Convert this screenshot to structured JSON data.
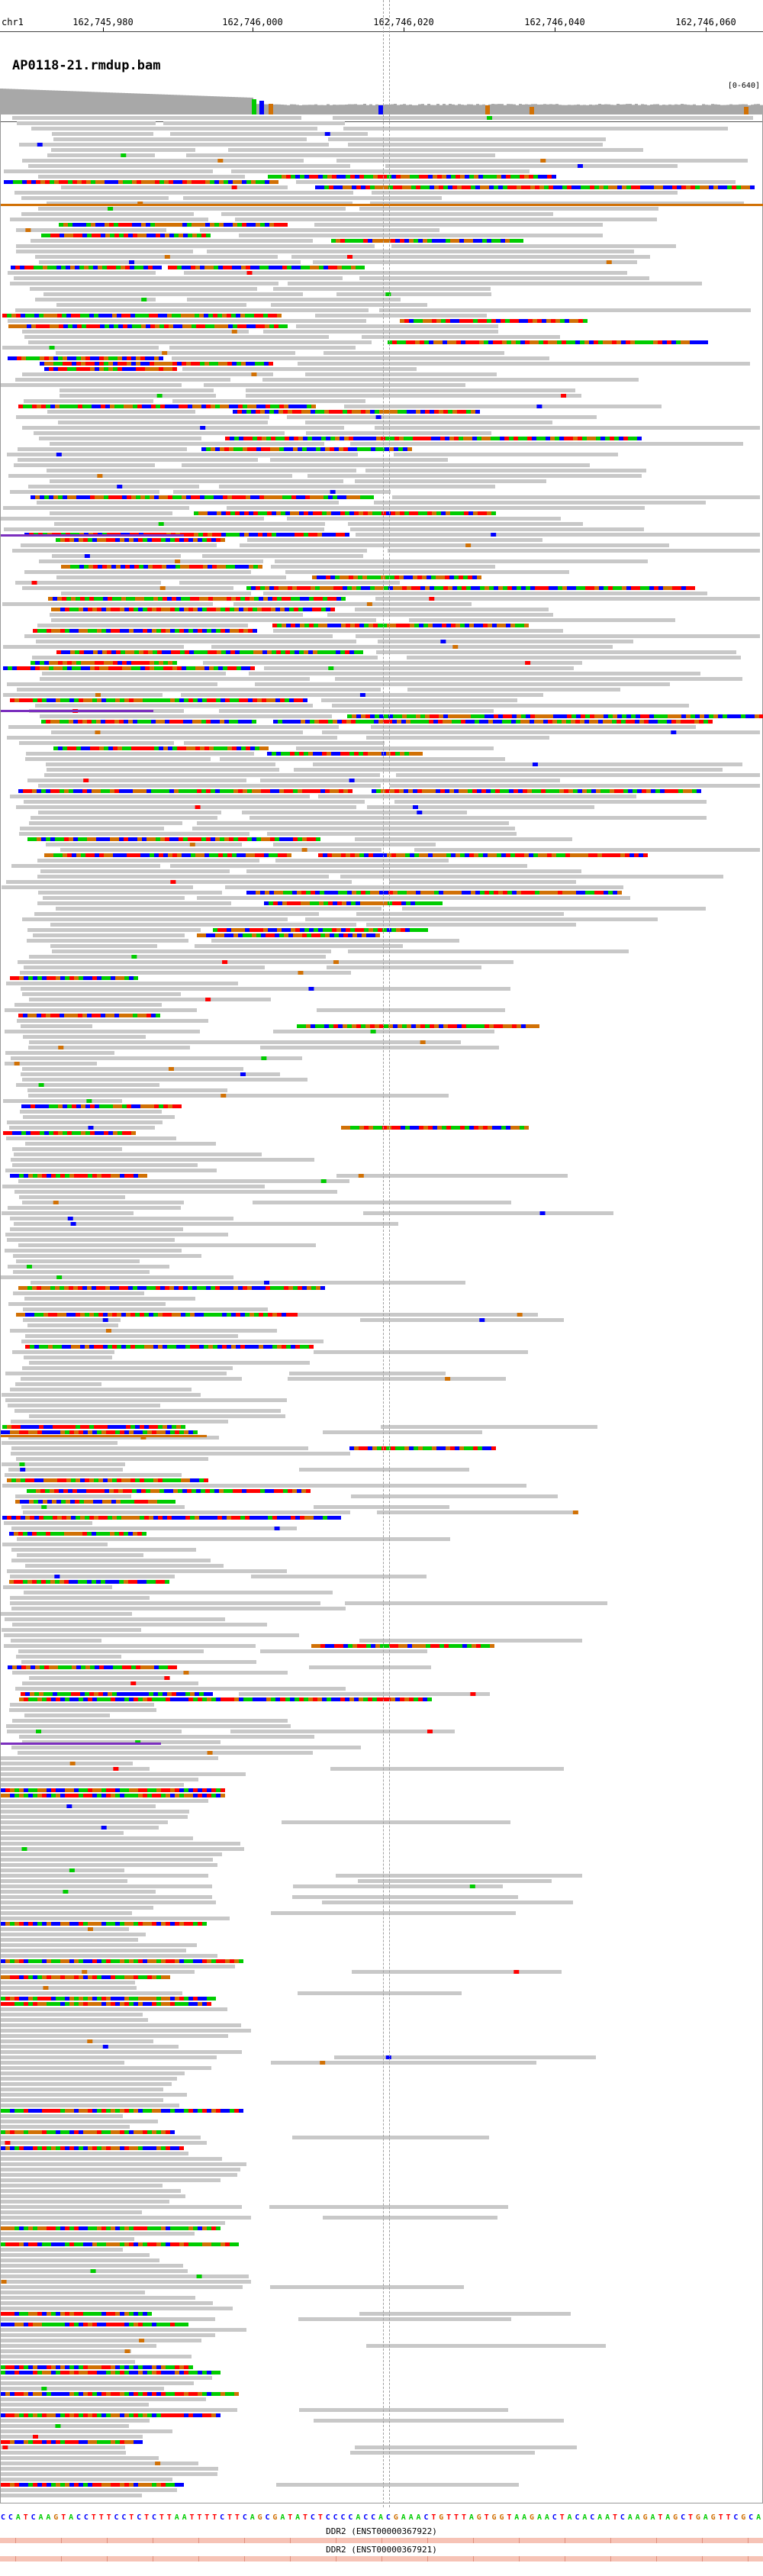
{
  "ruler": {
    "chromosome": "chr1",
    "ticks": [
      "162,745,980",
      "162,746,000",
      "162,746,020",
      "162,746,040",
      "162,746,060"
    ]
  },
  "track": {
    "name": "AP0118-21.rmdup.bam",
    "range": "[0-640]"
  },
  "colors": {
    "read": "#c8c8c8",
    "A": "#00cc00",
    "C": "#0000ff",
    "G": "#d17105",
    "T": "#ff0000",
    "insertion": "#7b2fbe",
    "coverage": "#a8a8a8"
  },
  "reference_sequence": "CCATCAAGTACCTTTCCTCTCTTAATTTTCTTCAGCGATATCTCCCCACCACGAAACTGTTTAGTGGTAAGAACTACACAATCAAGATAGCTGAGTTCGCA",
  "genes": [
    {
      "label": "DDR2 (ENST00000367922)"
    },
    {
      "label": "DDR2 (ENST00000367921)"
    }
  ]
}
